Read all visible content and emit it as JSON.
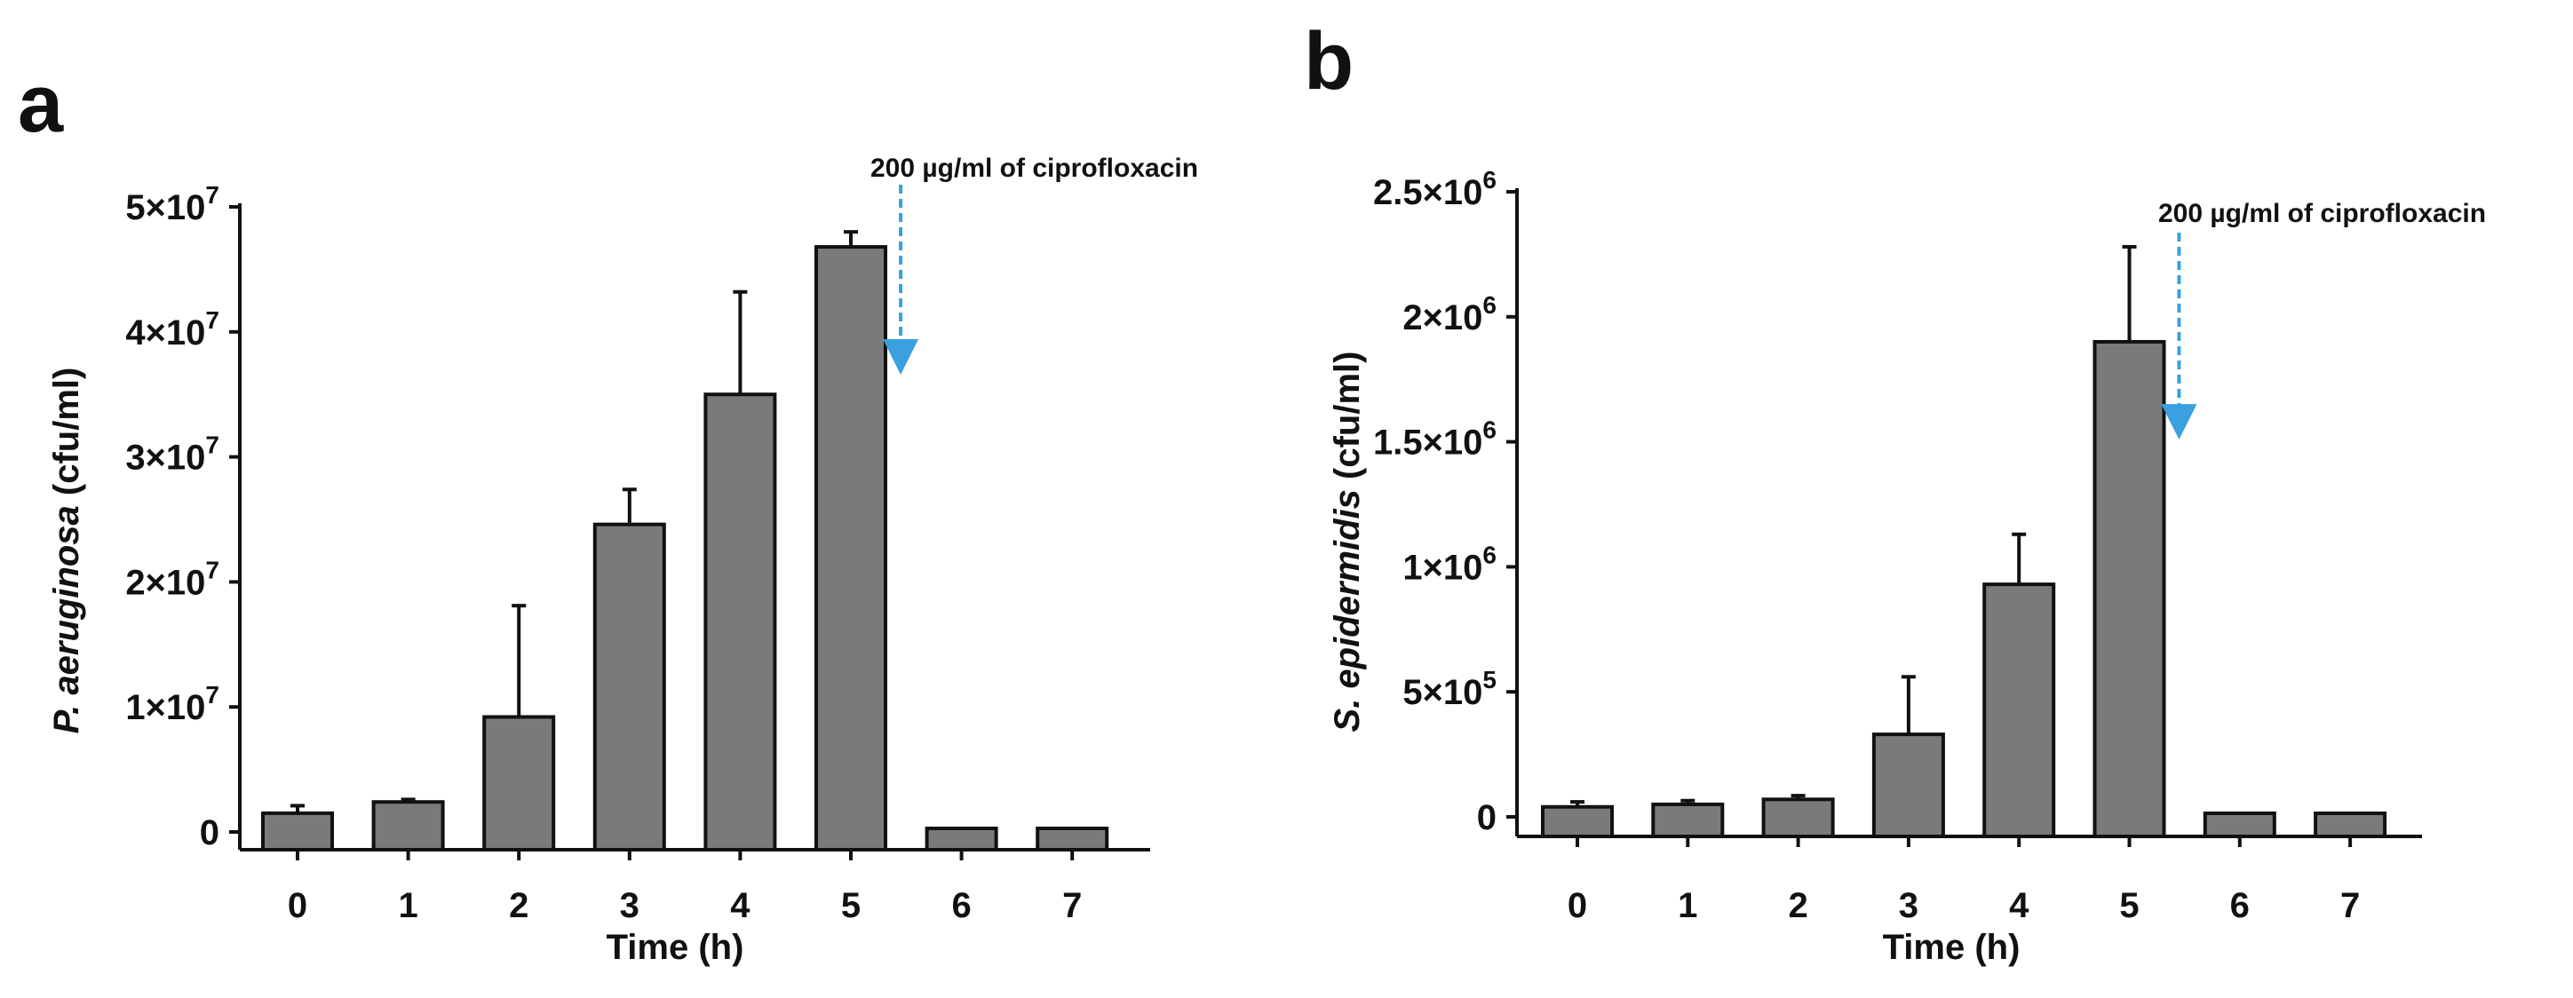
{
  "chart_data": [
    {
      "type": "bar",
      "panel_label": "a",
      "categories": [
        "0",
        "1",
        "2",
        "3",
        "4",
        "5",
        "6",
        "7"
      ],
      "values": [
        1500000,
        2400000,
        9200000,
        24600000,
        35000000,
        46800000,
        0,
        0
      ],
      "errors": [
        600000,
        200000,
        8900000,
        2800000,
        8200000,
        1200000,
        0,
        0
      ],
      "ylim": [
        0,
        50000000
      ],
      "ytick_values": [
        0,
        10000000,
        20000000,
        30000000,
        40000000,
        50000000
      ],
      "ytick_labels": [
        {
          "base": "0",
          "exp": ""
        },
        {
          "base": "1×10",
          "exp": "7"
        },
        {
          "base": "2×10",
          "exp": "7"
        },
        {
          "base": "3×10",
          "exp": "7"
        },
        {
          "base": "4×10",
          "exp": "7"
        },
        {
          "base": "5×10",
          "exp": "7"
        }
      ],
      "xlabel": "Time (h)",
      "ylabel_italic": "P. aeruginosa",
      "ylabel_rest": " (cfu/ml)",
      "annotation": {
        "text": "200 µg/ml of ciprofloxacin",
        "x_position": 5.45,
        "y_arrow_end": 38000000
      },
      "bar_color": "#7a7a7a",
      "arrow_color": "#3aa0e0"
    },
    {
      "type": "bar",
      "panel_label": "b",
      "categories": [
        "0",
        "1",
        "2",
        "3",
        "4",
        "5",
        "6",
        "7"
      ],
      "values": [
        40000,
        50000,
        70000,
        330000,
        930000,
        1900000,
        0,
        0
      ],
      "errors": [
        20000,
        15000,
        15000,
        230000,
        200000,
        380000,
        0,
        0
      ],
      "ylim": [
        0,
        2500000
      ],
      "ytick_values": [
        0,
        500000,
        1000000,
        1500000,
        2000000,
        2500000
      ],
      "ytick_labels": [
        {
          "base": "0",
          "exp": ""
        },
        {
          "base": "5×10",
          "exp": "5"
        },
        {
          "base": "1×10",
          "exp": "6"
        },
        {
          "base": "1.5×10",
          "exp": "6"
        },
        {
          "base": "2×10",
          "exp": "6"
        },
        {
          "base": "2.5×10",
          "exp": "6"
        }
      ],
      "xlabel": "Time (h)",
      "ylabel_italic": "S. epidermidis",
      "ylabel_rest": " (cfu/ml)",
      "annotation": {
        "text": "200 µg/ml of ciprofloxacin",
        "x_position": 5.45,
        "y_arrow_end": 1580000
      },
      "bar_color": "#7a7a7a",
      "arrow_color": "#3aa0e0"
    }
  ]
}
